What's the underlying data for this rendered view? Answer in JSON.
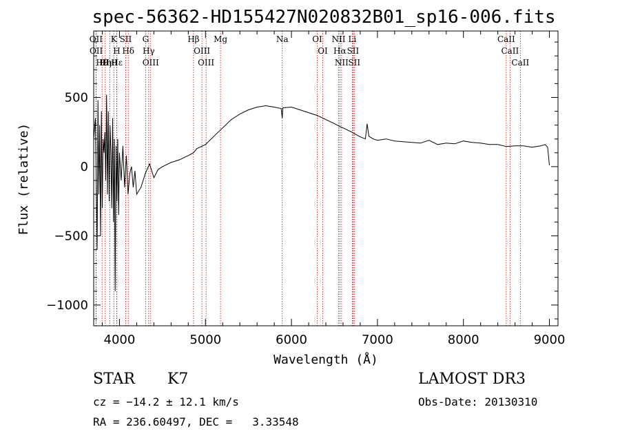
{
  "chart_data": {
    "type": "line",
    "title": "spec-56362-HD155427N020832B01_sp16-006.fits",
    "xlabel": "Wavelength (Å)",
    "ylabel": "Flux (relative)",
    "xlim": [
      3700,
      9100
    ],
    "ylim": [
      -1150,
      980
    ],
    "x_ticks": [
      4000,
      5000,
      6000,
      7000,
      8000,
      9000
    ],
    "y_ticks": [
      -1000,
      -500,
      0,
      500
    ],
    "grid": false,
    "series": [
      {
        "name": "flux",
        "x": [
          3700,
          3720,
          3740,
          3750,
          3760,
          3770,
          3780,
          3790,
          3800,
          3810,
          3820,
          3830,
          3840,
          3850,
          3860,
          3870,
          3880,
          3890,
          3900,
          3910,
          3920,
          3930,
          3940,
          3950,
          3960,
          3970,
          3980,
          3990,
          4000,
          4020,
          4040,
          4060,
          4080,
          4100,
          4120,
          4140,
          4160,
          4180,
          4200,
          4250,
          4300,
          4350,
          4400,
          4450,
          4500,
          4600,
          4700,
          4800,
          4860,
          4900,
          5000,
          5100,
          5200,
          5300,
          5400,
          5500,
          5600,
          5700,
          5800,
          5880,
          5893,
          5900,
          6000,
          6100,
          6200,
          6300,
          6400,
          6500,
          6560,
          6600,
          6700,
          6800,
          6860,
          6880,
          6900,
          6950,
          7000,
          7100,
          7200,
          7300,
          7400,
          7500,
          7600,
          7700,
          7800,
          7900,
          8000,
          8100,
          8200,
          8300,
          8400,
          8500,
          8600,
          8700,
          8800,
          8900,
          8950,
          8980,
          9000
        ],
        "values": [
          200,
          350,
          -600,
          480,
          -200,
          300,
          -500,
          400,
          -300,
          200,
          100,
          250,
          -100,
          520,
          -200,
          400,
          -250,
          300,
          100,
          -300,
          350,
          -400,
          200,
          -900,
          150,
          -250,
          200,
          -350,
          100,
          -100,
          150,
          -150,
          80,
          -200,
          -50,
          0,
          -150,
          -30,
          -200,
          -150,
          -50,
          20,
          -80,
          -20,
          0,
          30,
          50,
          80,
          100,
          130,
          160,
          220,
          280,
          340,
          380,
          410,
          430,
          440,
          430,
          420,
          350,
          425,
          430,
          410,
          390,
          370,
          340,
          310,
          290,
          280,
          250,
          215,
          200,
          310,
          220,
          200,
          190,
          200,
          185,
          180,
          175,
          170,
          190,
          160,
          170,
          165,
          185,
          175,
          170,
          160,
          160,
          145,
          150,
          150,
          140,
          150,
          160,
          140,
          10
        ]
      }
    ],
    "line_markers": [
      {
        "label": "Hα",
        "x": 6563
      },
      {
        "label": "Hβ",
        "x": 4861
      },
      {
        "label": "Hγ",
        "x": 4340
      },
      {
        "label": "Hδ",
        "x": 4102
      },
      {
        "label": "Hε",
        "x": 3970
      },
      {
        "label": "Hη",
        "x": 3835
      },
      {
        "label": "Hθ",
        "x": 3798
      },
      {
        "label": "H",
        "x": 3968
      },
      {
        "label": "K",
        "x": 3934
      },
      {
        "label": "G",
        "x": 4304
      },
      {
        "label": "Mg",
        "x": 5175
      },
      {
        "label": "Na",
        "x": 5893
      },
      {
        "label": "OII",
        "x": 3727
      },
      {
        "label": "OII",
        "x": 3729
      },
      {
        "label": "OIII",
        "x": 4363
      },
      {
        "label": "OIII",
        "x": 4959
      },
      {
        "label": "OIII",
        "x": 5007
      },
      {
        "label": "OI",
        "x": 6300
      },
      {
        "label": "OI",
        "x": 6364
      },
      {
        "label": "NII",
        "x": 6548
      },
      {
        "label": "NII",
        "x": 6583
      },
      {
        "label": "SII",
        "x": 6716
      },
      {
        "label": "SII",
        "x": 6731
      },
      {
        "label": "SII",
        "x": 4072
      },
      {
        "label": "HeI",
        "x": 3889
      },
      {
        "label": "Li",
        "x": 6708
      },
      {
        "label": "CaII",
        "x": 8498
      },
      {
        "label": "CaII",
        "x": 8542
      },
      {
        "label": "CaII",
        "x": 8662
      }
    ]
  },
  "info": {
    "object_class": "STAR",
    "subclass": "K7",
    "cz_line": "cz = −14.2 ± 12.1 km/s",
    "coord_line": "RA = 236.60497, DEC =   3.33548",
    "survey": "LAMOST DR3",
    "obs_date_line": "Obs-Date: 20130310"
  },
  "colors": {
    "marker_line": "#cc0000",
    "spectrum": "#000000",
    "axes": "#000000"
  }
}
